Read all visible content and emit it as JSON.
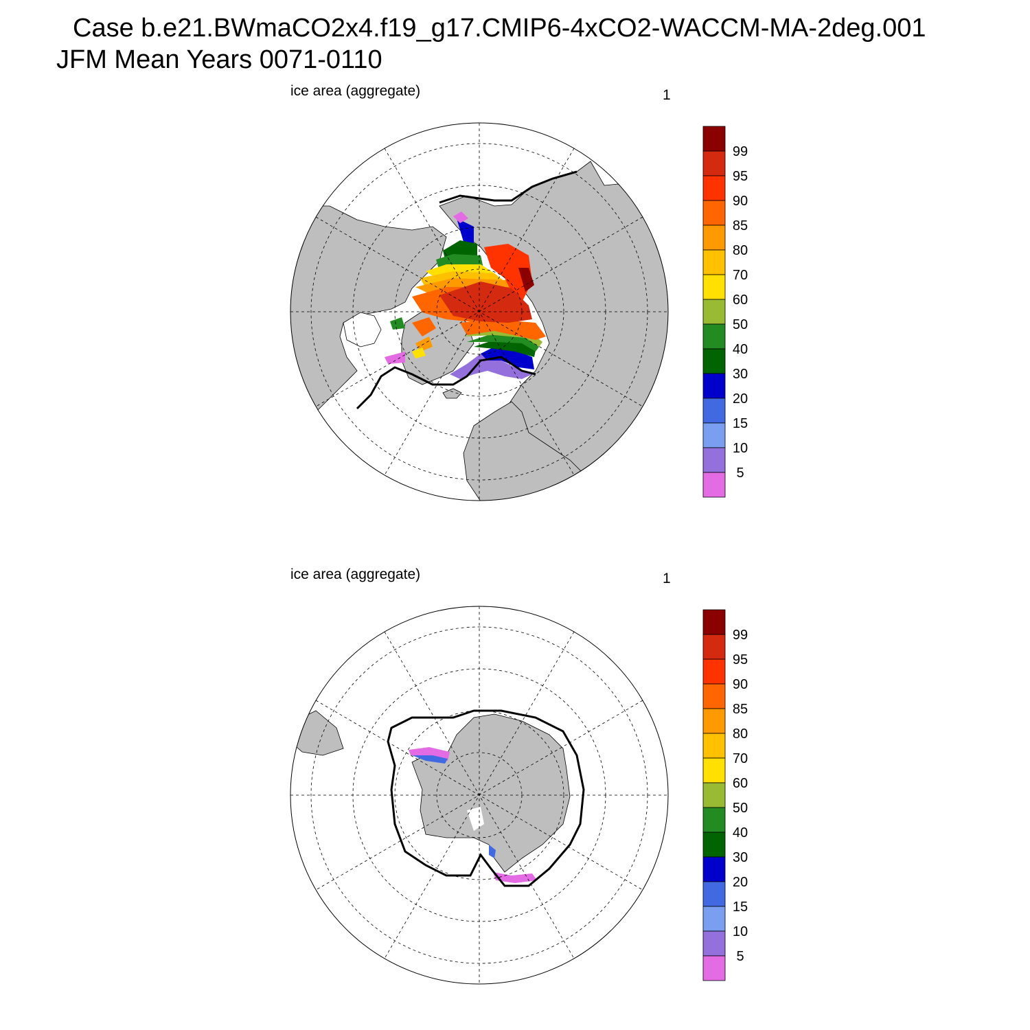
{
  "header": {
    "case_line": "Case b.e21.BWmaCO2x4.f19_g17.CMIP6-4xCO2-WACCM-MA-2deg.001",
    "period_line": "JFM Mean     Years 0071-0110"
  },
  "panels": [
    {
      "id": "north",
      "hemisphere": "Northern",
      "title": "ice area  (aggregate)",
      "units": "1"
    },
    {
      "id": "south",
      "hemisphere": "Southern",
      "title": "ice area  (aggregate)",
      "units": "1"
    }
  ],
  "colorbar": {
    "labels": [
      "99",
      "95",
      "90",
      "85",
      "80",
      "70",
      "60",
      "50",
      "40",
      "30",
      "20",
      "15",
      "10",
      "5"
    ],
    "levels": [
      5,
      10,
      15,
      20,
      30,
      40,
      50,
      60,
      70,
      80,
      85,
      90,
      95,
      99
    ],
    "colors": [
      "#8b0000",
      "#d42a10",
      "#ff3300",
      "#ff6600",
      "#ff9900",
      "#ffc000",
      "#ffe000",
      "#99bb33",
      "#228b22",
      "#006400",
      "#0000cd",
      "#4169e1",
      "#7b9ff0",
      "#9370db",
      "#e36be3"
    ]
  },
  "colors": {
    "land": "#bebebe",
    "ocean": "#ffffff",
    "grid": "#000000",
    "observed_edge": "#000000"
  }
}
